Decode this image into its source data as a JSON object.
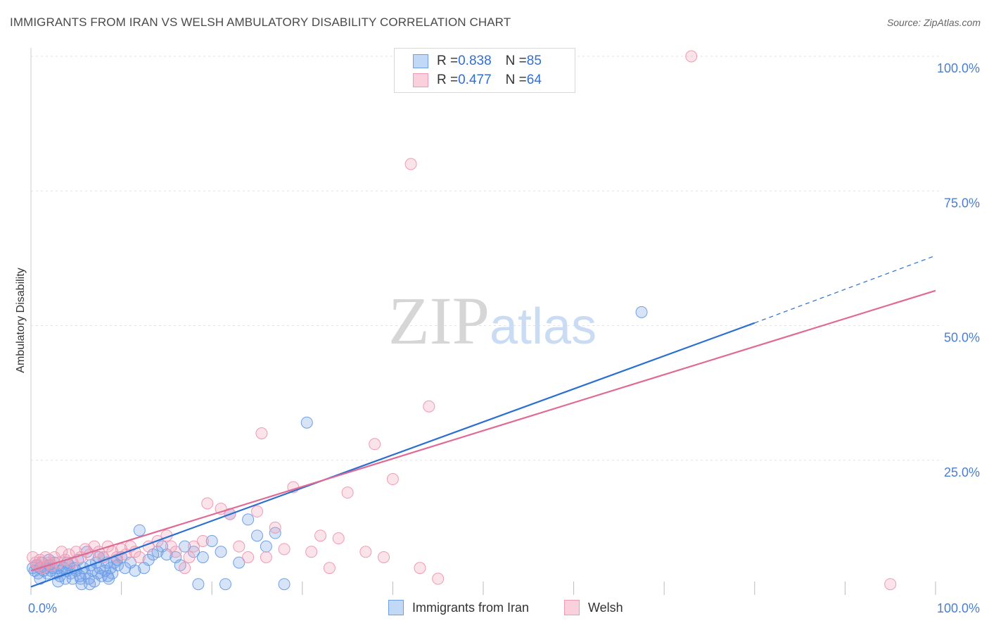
{
  "title": "IMMIGRANTS FROM IRAN VS WELSH AMBULATORY DISABILITY CORRELATION CHART",
  "source": "Source: ZipAtlas.com",
  "watermark": {
    "zip": "ZIP",
    "atlas": "atlas"
  },
  "legend": {
    "r_label": "R = ",
    "n_label": "N = ",
    "rows": [
      {
        "r": "0.838",
        "n": "85"
      },
      {
        "r": "0.477",
        "n": "64"
      }
    ]
  },
  "chart_data": {
    "type": "scatter",
    "title": "IMMIGRANTS FROM IRAN VS WELSH AMBULATORY DISABILITY CORRELATION CHART",
    "xlabel": "",
    "ylabel": "Ambulatory Disability",
    "xlim": [
      0,
      100
    ],
    "ylim": [
      0,
      100
    ],
    "x_tick_labels": [
      "0.0%",
      "100.0%"
    ],
    "y_ticks": [
      25,
      50,
      75,
      100
    ],
    "y_tick_labels": [
      "25.0%",
      "50.0%",
      "75.0%",
      "100.0%"
    ],
    "grid": true,
    "legend_position": "top-center",
    "series": [
      {
        "name": "Immigrants from Iran",
        "color": "#6f9fe6",
        "line_color": "#2a6fd0",
        "r": 0.838,
        "n": 85,
        "trend": {
          "x0": 0,
          "y0": 1.5,
          "x1": 80,
          "y1": 50.5,
          "dash_to_x": 100,
          "dash_to_y": 63
        },
        "points": [
          [
            0.2,
            5
          ],
          [
            0.4,
            4.5
          ],
          [
            0.6,
            5.5
          ],
          [
            0.8,
            4
          ],
          [
            1,
            5
          ],
          [
            1.2,
            6
          ],
          [
            1.4,
            4.5
          ],
          [
            1.6,
            5
          ],
          [
            1.8,
            4
          ],
          [
            2,
            5.5
          ],
          [
            2.2,
            4.5
          ],
          [
            2.4,
            5
          ],
          [
            2.6,
            6
          ],
          [
            2.8,
            4
          ],
          [
            3,
            5
          ],
          [
            3.2,
            3.5
          ],
          [
            3.4,
            4.5
          ],
          [
            3.6,
            5
          ],
          [
            3.8,
            3
          ],
          [
            4,
            4.5
          ],
          [
            4.2,
            5.5
          ],
          [
            4.4,
            4
          ],
          [
            4.6,
            3
          ],
          [
            4.8,
            5
          ],
          [
            5,
            4.5
          ],
          [
            5.2,
            6.5
          ],
          [
            5.4,
            3.5
          ],
          [
            5.6,
            2
          ],
          [
            5.8,
            5
          ],
          [
            6,
            4
          ],
          [
            6.2,
            8
          ],
          [
            6.4,
            3
          ],
          [
            6.6,
            5.5
          ],
          [
            6.8,
            4.5
          ],
          [
            7,
            2.5
          ],
          [
            7.2,
            6
          ],
          [
            7.4,
            4
          ],
          [
            7.6,
            5
          ],
          [
            7.8,
            3.5
          ],
          [
            8,
            7
          ],
          [
            8.2,
            4.5
          ],
          [
            8.4,
            6
          ],
          [
            8.6,
            3
          ],
          [
            8.8,
            5
          ],
          [
            9,
            4
          ],
          [
            9.2,
            6
          ],
          [
            9.6,
            5.5
          ],
          [
            10,
            7
          ],
          [
            10.4,
            5
          ],
          [
            11,
            6
          ],
          [
            11.5,
            4.5
          ],
          [
            12,
            12
          ],
          [
            12.5,
            5
          ],
          [
            13,
            6.5
          ],
          [
            14,
            8
          ],
          [
            14.5,
            9
          ],
          [
            15,
            7.5
          ],
          [
            16,
            7
          ],
          [
            16.5,
            5.5
          ],
          [
            17,
            9
          ],
          [
            18,
            8
          ],
          [
            18.5,
            2
          ],
          [
            19,
            7
          ],
          [
            20,
            10
          ],
          [
            21,
            8
          ],
          [
            21.5,
            2
          ],
          [
            22,
            15
          ],
          [
            23,
            6
          ],
          [
            24,
            14
          ],
          [
            25,
            11
          ],
          [
            26,
            9
          ],
          [
            27,
            11.5
          ],
          [
            28,
            2
          ],
          [
            30.5,
            32
          ],
          [
            67.5,
            52.5
          ],
          [
            1,
            3
          ],
          [
            2,
            6.5
          ],
          [
            3,
            2.5
          ],
          [
            4,
            6
          ],
          [
            5.5,
            3
          ],
          [
            6.5,
            2
          ],
          [
            7.5,
            7
          ],
          [
            8.5,
            3.5
          ],
          [
            9.5,
            6.5
          ],
          [
            13.5,
            7.5
          ]
        ]
      },
      {
        "name": "Welsh",
        "color": "#f09ab5",
        "line_color": "#e06a94",
        "r": 0.477,
        "n": 64,
        "trend": {
          "x0": 0,
          "y0": 4.5,
          "x1": 100,
          "y1": 56.5
        },
        "points": [
          [
            0.2,
            7
          ],
          [
            0.5,
            6
          ],
          [
            0.8,
            5.5
          ],
          [
            1,
            6.5
          ],
          [
            1.3,
            5
          ],
          [
            1.6,
            7
          ],
          [
            2,
            6
          ],
          [
            2.3,
            5.5
          ],
          [
            2.6,
            7
          ],
          [
            3,
            6
          ],
          [
            3.4,
            8
          ],
          [
            3.8,
            6.5
          ],
          [
            4.2,
            7.5
          ],
          [
            4.6,
            6
          ],
          [
            5,
            8
          ],
          [
            5.5,
            7
          ],
          [
            6,
            8.5
          ],
          [
            6.5,
            7.5
          ],
          [
            7,
            9
          ],
          [
            7.5,
            8
          ],
          [
            8,
            7
          ],
          [
            8.5,
            9
          ],
          [
            9,
            8
          ],
          [
            9.5,
            7
          ],
          [
            10,
            8.5
          ],
          [
            10.5,
            7.5
          ],
          [
            11,
            9
          ],
          [
            11.5,
            8
          ],
          [
            12,
            7
          ],
          [
            13,
            9
          ],
          [
            14,
            10
          ],
          [
            15,
            11
          ],
          [
            15.5,
            9
          ],
          [
            16,
            8
          ],
          [
            17,
            5
          ],
          [
            17.5,
            7
          ],
          [
            18,
            9
          ],
          [
            19,
            10
          ],
          [
            19.5,
            17
          ],
          [
            21,
            16
          ],
          [
            22,
            15
          ],
          [
            23,
            9
          ],
          [
            24,
            7
          ],
          [
            25,
            15.5
          ],
          [
            25.5,
            30
          ],
          [
            26,
            7
          ],
          [
            27,
            12.5
          ],
          [
            28,
            8.5
          ],
          [
            29,
            20
          ],
          [
            31,
            8
          ],
          [
            32,
            11
          ],
          [
            33,
            5
          ],
          [
            34,
            10.5
          ],
          [
            35,
            19
          ],
          [
            37,
            8
          ],
          [
            38,
            28
          ],
          [
            39,
            7
          ],
          [
            40,
            21.5
          ],
          [
            42,
            80
          ],
          [
            43,
            5
          ],
          [
            44,
            35
          ],
          [
            45,
            3
          ],
          [
            73,
            100
          ],
          [
            95,
            2
          ]
        ]
      }
    ]
  }
}
